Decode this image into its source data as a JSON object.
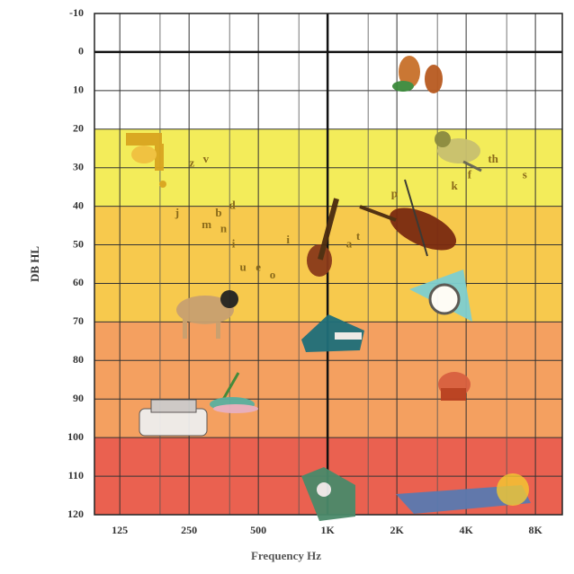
{
  "chart_data": {
    "type": "audiogram",
    "x_label": "Frequency Hz",
    "y_label": "DB HL",
    "log_x": true,
    "invert_y": true,
    "xlim": [
      97,
      10470
    ],
    "ylim": [
      -10,
      120
    ],
    "xticks": [
      125,
      250,
      500,
      {
        "value": 1000,
        "label": "1K"
      },
      {
        "value": 2000,
        "label": "2K"
      },
      {
        "value": 4000,
        "label": "4K"
      },
      {
        "value": 8000,
        "label": "8K"
      }
    ],
    "minor_xticks": [
      187,
      375,
      750,
      1500,
      3000,
      6000
    ],
    "yticks": [
      -10,
      0,
      10,
      20,
      30,
      40,
      50,
      60,
      70,
      80,
      90,
      100,
      110,
      120
    ],
    "grid": true,
    "bold_x": 1000,
    "bold_y": 0,
    "bands": [
      {
        "from": -10,
        "to": 20,
        "color": "#ffffff"
      },
      {
        "from": 20,
        "to": 40,
        "color": "#f3ec5a"
      },
      {
        "from": 40,
        "to": 70,
        "color": "#f7c94d"
      },
      {
        "from": 70,
        "to": 100,
        "color": "#f4a060"
      },
      {
        "from": 100,
        "to": 120,
        "color": "#ea6150"
      }
    ],
    "letter_color": "#8a6a1a",
    "speech_sounds": [
      {
        "label": "z",
        "x": 257,
        "y": 29
      },
      {
        "label": "v",
        "x": 296,
        "y": 28
      },
      {
        "label": "j",
        "x": 222,
        "y": 42
      },
      {
        "label": "m",
        "x": 298,
        "y": 45
      },
      {
        "label": "n",
        "x": 353,
        "y": 46
      },
      {
        "label": "b",
        "x": 336,
        "y": 42
      },
      {
        "label": "d",
        "x": 385,
        "y": 40
      },
      {
        "label": "i",
        "x": 390,
        "y": 50
      },
      {
        "label": "i",
        "x": 673,
        "y": 49
      },
      {
        "label": "u",
        "x": 429,
        "y": 56
      },
      {
        "label": "e",
        "x": 500,
        "y": 56
      },
      {
        "label": "o",
        "x": 577,
        "y": 58
      },
      {
        "label": "a",
        "x": 1240,
        "y": 50
      },
      {
        "label": "t",
        "x": 1357,
        "y": 48
      },
      {
        "label": "p",
        "x": 1950,
        "y": 37
      },
      {
        "label": "k",
        "x": 3560,
        "y": 35
      },
      {
        "label": "f",
        "x": 4140,
        "y": 32
      },
      {
        "label": "th",
        "x": 5240,
        "y": 28
      },
      {
        "label": "s",
        "x": 7190,
        "y": 32
      }
    ]
  }
}
